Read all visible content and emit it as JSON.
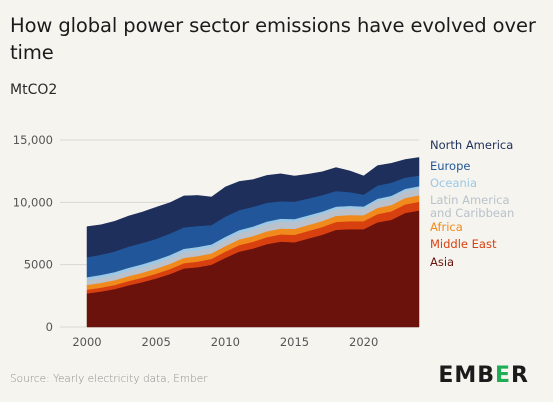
{
  "title": "How global power sector emissions have evolved over time",
  "subtitle": "MtCO2",
  "source": "Source: Yearly electricity data, Ember",
  "logo": {
    "prefix": "EMB",
    "mark": "E",
    "suffix": "R"
  },
  "colors": {
    "North America": "#1f2f5c",
    "Europe": "#21579a",
    "Oceania": "#9cc8e6",
    "Latin America and Caribbean": "#b9c2cc",
    "Africa": "#f08a1d",
    "Middle East": "#d9400f",
    "Asia": "#6b120c"
  },
  "chart_data": {
    "type": "area",
    "stacked": true,
    "title": "How global power sector emissions have evolved over time",
    "ylabel": "MtCO2",
    "xlabel": "",
    "ylim": [
      0,
      15000
    ],
    "xlim": [
      2000,
      2024
    ],
    "grid": true,
    "legend_placement": "right",
    "y_ticks": [
      0,
      5000,
      10000,
      15000
    ],
    "y_tick_labels": [
      "0",
      "5000",
      "10,000",
      "15,000"
    ],
    "x_ticks": [
      2000,
      2005,
      2010,
      2015,
      2020
    ],
    "x_tick_labels": [
      "2000",
      "2005",
      "2010",
      "2015",
      "2020"
    ],
    "x": [
      2000,
      2001,
      2002,
      2003,
      2004,
      2005,
      2006,
      2007,
      2008,
      2009,
      2010,
      2011,
      2012,
      2013,
      2014,
      2015,
      2016,
      2017,
      2018,
      2019,
      2020,
      2021,
      2022,
      2023,
      2024
    ],
    "series": [
      {
        "name": "Asia",
        "values": [
          2700,
          2850,
          3050,
          3350,
          3600,
          3900,
          4250,
          4700,
          4800,
          5000,
          5550,
          6050,
          6300,
          6650,
          6850,
          6800,
          7100,
          7400,
          7800,
          7850,
          7850,
          8400,
          8600,
          9150,
          9350
        ]
      },
      {
        "name": "Middle East",
        "values": [
          300,
          310,
          320,
          340,
          360,
          380,
          400,
          420,
          450,
          470,
          500,
          520,
          540,
          560,
          580,
          600,
          610,
          620,
          630,
          640,
          640,
          660,
          680,
          690,
          700
        ]
      },
      {
        "name": "Africa",
        "values": [
          380,
          385,
          390,
          395,
          400,
          410,
          420,
          430,
          440,
          440,
          450,
          455,
          460,
          470,
          470,
          475,
          480,
          485,
          490,
          495,
          480,
          500,
          510,
          515,
          520
        ]
      },
      {
        "name": "Latin America and Caribbean",
        "values": [
          380,
          390,
          400,
          410,
          420,
          430,
          440,
          460,
          470,
          460,
          480,
          500,
          520,
          540,
          560,
          560,
          550,
          540,
          530,
          530,
          500,
          540,
          550,
          550,
          560
        ]
      },
      {
        "name": "Oceania",
        "values": [
          240,
          245,
          250,
          255,
          260,
          260,
          265,
          265,
          265,
          260,
          255,
          250,
          245,
          240,
          230,
          225,
          220,
          215,
          210,
          205,
          200,
          195,
          190,
          180,
          170
        ]
      },
      {
        "name": "Europe",
        "values": [
          1600,
          1620,
          1650,
          1700,
          1700,
          1690,
          1720,
          1720,
          1680,
          1550,
          1620,
          1600,
          1580,
          1500,
          1400,
          1400,
          1350,
          1320,
          1250,
          1100,
          950,
          1050,
          1050,
          900,
          850
        ]
      },
      {
        "name": "North America",
        "values": [
          2450,
          2400,
          2420,
          2450,
          2480,
          2540,
          2480,
          2520,
          2450,
          2250,
          2380,
          2300,
          2180,
          2200,
          2200,
          2050,
          1950,
          1870,
          1880,
          1700,
          1500,
          1600,
          1550,
          1450,
          1450
        ]
      }
    ],
    "legend_order": [
      "North America",
      "Europe",
      "Oceania",
      "Latin America and Caribbean",
      "Africa",
      "Middle East",
      "Asia"
    ]
  }
}
